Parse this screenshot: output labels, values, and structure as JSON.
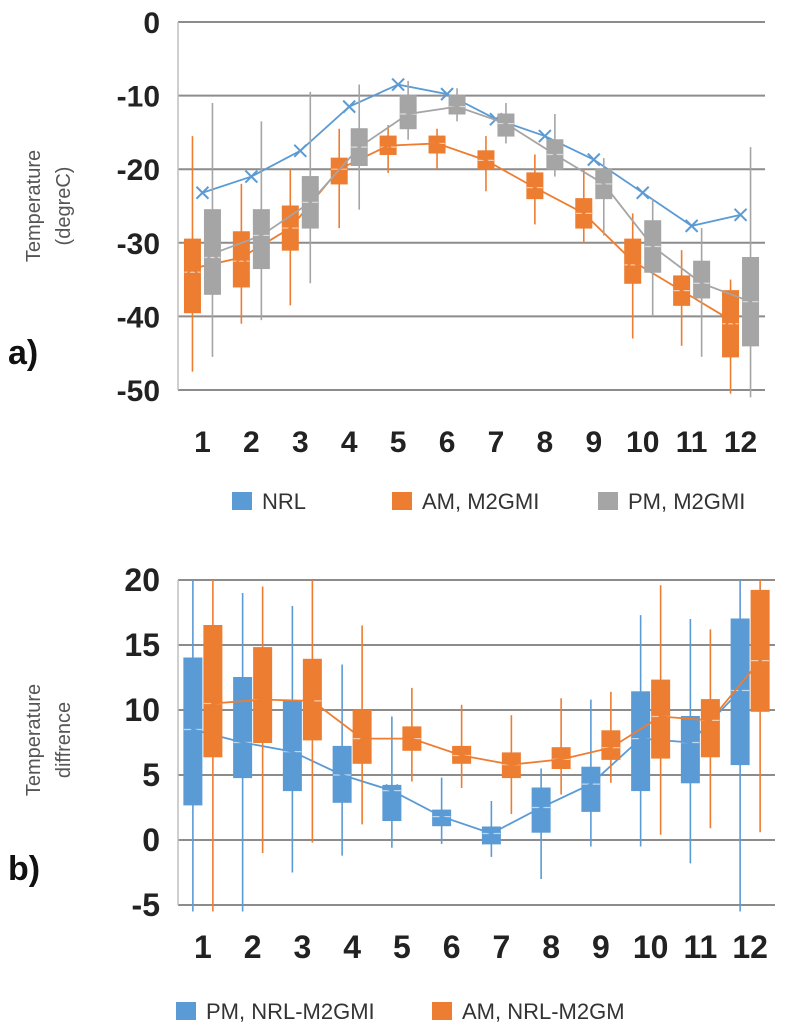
{
  "chart_data": [
    {
      "type": "box",
      "panel_label": "a)",
      "ylabel_lines": [
        "Temperature",
        "(degreC)"
      ],
      "ylim": [
        -50,
        0
      ],
      "yticks": [
        0,
        -10,
        -20,
        -30,
        -40,
        -50
      ],
      "categories": [
        "1",
        "2",
        "3",
        "4",
        "5",
        "6",
        "7",
        "8",
        "9",
        "10",
        "11",
        "12"
      ],
      "grid": true,
      "legend_position": "bottom",
      "series": [
        {
          "name": "NRL",
          "color": "#5b9bd5",
          "line": true,
          "mean": [
            -23.2,
            -21,
            -17.5,
            -11.5,
            -8.5,
            -9.8,
            -13.2,
            -15.5,
            -18.7,
            -23.2,
            -27.7,
            -26.2
          ]
        },
        {
          "name": "AM, M2GMI",
          "color": "#ed7d31",
          "line": true,
          "mean": [
            -33.5,
            -32,
            -28,
            -20,
            -16.8,
            -16.5,
            -18.8,
            -22.5,
            -26,
            -32.5,
            -36.5,
            -40.5
          ],
          "q1": [
            -39.5,
            -36,
            -31,
            -22,
            -18,
            -17.8,
            -20,
            -24,
            -28,
            -35.5,
            -38.5,
            -45.5
          ],
          "q3": [
            -29.5,
            -28.5,
            -25,
            -18.5,
            -15.5,
            -15.5,
            -17.5,
            -20.5,
            -24,
            -29.5,
            -34.5,
            -36.5
          ],
          "median": [
            -34,
            -32.5,
            -28,
            -20,
            -17,
            -16.5,
            -18.8,
            -22.5,
            -26,
            -33,
            -36.5,
            -41
          ],
          "min": [
            -47.5,
            -41,
            -38.5,
            -28,
            -20.5,
            -20,
            -23,
            -27.5,
            -30,
            -43,
            -44,
            -50.5
          ],
          "max": [
            -15.5,
            -22,
            -20,
            -14.5,
            -14,
            -14.5,
            -15.5,
            -18,
            -20,
            -26,
            -31,
            -35
          ]
        },
        {
          "name": "PM, M2GMI",
          "color": "#a5a5a5",
          "line": true,
          "mean": [
            -31.5,
            -29,
            -24.5,
            -17,
            -12.5,
            -11.5,
            -13.8,
            -18,
            -22,
            -30.5,
            -35.5,
            -38
          ],
          "q1": [
            -37,
            -33.5,
            -28,
            -19.5,
            -14.5,
            -12.5,
            -15.5,
            -20,
            -24,
            -34,
            -37.5,
            -44
          ],
          "q3": [
            -25.5,
            -25.5,
            -21,
            -14.5,
            -10,
            -10,
            -12.5,
            -16,
            -20,
            -27,
            -32.5,
            -32
          ],
          "median": [
            -32,
            -29,
            -24.5,
            -17,
            -12.5,
            -11.5,
            -13.8,
            -18,
            -22,
            -30.5,
            -35.5,
            -38
          ],
          "min": [
            -45.5,
            -40.5,
            -35.5,
            -25.5,
            -16,
            -13.5,
            -16.5,
            -21,
            -29,
            -40,
            -45.5,
            -51
          ],
          "max": [
            -11,
            -13.5,
            -9.5,
            -8.5,
            -8,
            -9,
            -11,
            -12.5,
            -18.5,
            -24,
            -28,
            -17
          ]
        }
      ],
      "legend": [
        "NRL",
        "AM, M2GMI",
        "PM, M2GMI"
      ]
    },
    {
      "type": "box",
      "panel_label": "b)",
      "ylabel_lines": [
        "Temperature",
        "diffrence"
      ],
      "ylim": [
        -5,
        20
      ],
      "yticks": [
        20,
        15,
        10,
        5,
        0,
        -5
      ],
      "categories": [
        "1",
        "2",
        "3",
        "4",
        "5",
        "6",
        "7",
        "8",
        "9",
        "10",
        "11",
        "12"
      ],
      "grid": true,
      "legend_position": "bottom",
      "series": [
        {
          "name": "PM, NRL-M2GMI",
          "color": "#5b9bd5",
          "line": true,
          "mean": [
            8.5,
            7.5,
            6.8,
            5,
            3.8,
            1.8,
            0.5,
            2.5,
            4.3,
            7.8,
            7.5,
            11.5
          ],
          "q1": [
            2.7,
            4.8,
            3.8,
            2.9,
            1.5,
            1.1,
            -0.3,
            0.6,
            2.2,
            3.8,
            4.4,
            5.8
          ],
          "q3": [
            14,
            12.5,
            10.7,
            7.2,
            4.2,
            2.3,
            1,
            4,
            5.6,
            11.4,
            9.5,
            17
          ],
          "median": [
            8.5,
            7.5,
            6.8,
            5,
            3.8,
            1.8,
            0.5,
            2.5,
            4.3,
            7.8,
            7.5,
            11.5
          ],
          "min": [
            -5.5,
            -5.5,
            -2.5,
            -1.2,
            -0.6,
            -0.3,
            -1.3,
            -3,
            -0.5,
            -0.5,
            -1.8,
            -5.5
          ],
          "max": [
            20,
            19,
            18,
            13.5,
            9.5,
            4.8,
            3,
            5.5,
            10.8,
            17.3,
            17,
            20
          ]
        },
        {
          "name": "AM, NRL-M2GM",
          "color": "#ed7d31",
          "line": true,
          "mean": [
            10.5,
            10.8,
            10.7,
            7.8,
            7.8,
            6.5,
            5.8,
            6.2,
            7.1,
            9.5,
            9.2,
            13.8
          ],
          "q1": [
            6.4,
            7.5,
            7.7,
            5.9,
            6.9,
            5.9,
            4.8,
            5.5,
            6.2,
            6.3,
            6.4,
            9.9
          ],
          "q3": [
            16.5,
            14.8,
            13.9,
            10,
            8.7,
            7.2,
            6.7,
            7.1,
            8.4,
            12.3,
            10.8,
            19.2
          ],
          "median": [
            10.5,
            10.8,
            10.7,
            7.8,
            7.8,
            6.5,
            5.8,
            6.2,
            7.1,
            9.5,
            9.2,
            13.8
          ],
          "min": [
            -5.5,
            -1,
            -0.2,
            1.2,
            4.5,
            4,
            2,
            3.5,
            4.4,
            0.4,
            0.9,
            0.6
          ],
          "max": [
            20,
            19.5,
            20,
            16.5,
            11.7,
            10.4,
            9.6,
            10.9,
            11.4,
            19.6,
            16.2,
            20
          ]
        }
      ],
      "legend": [
        "PM, NRL-M2GMI",
        "AM, NRL-M2GM"
      ]
    }
  ]
}
